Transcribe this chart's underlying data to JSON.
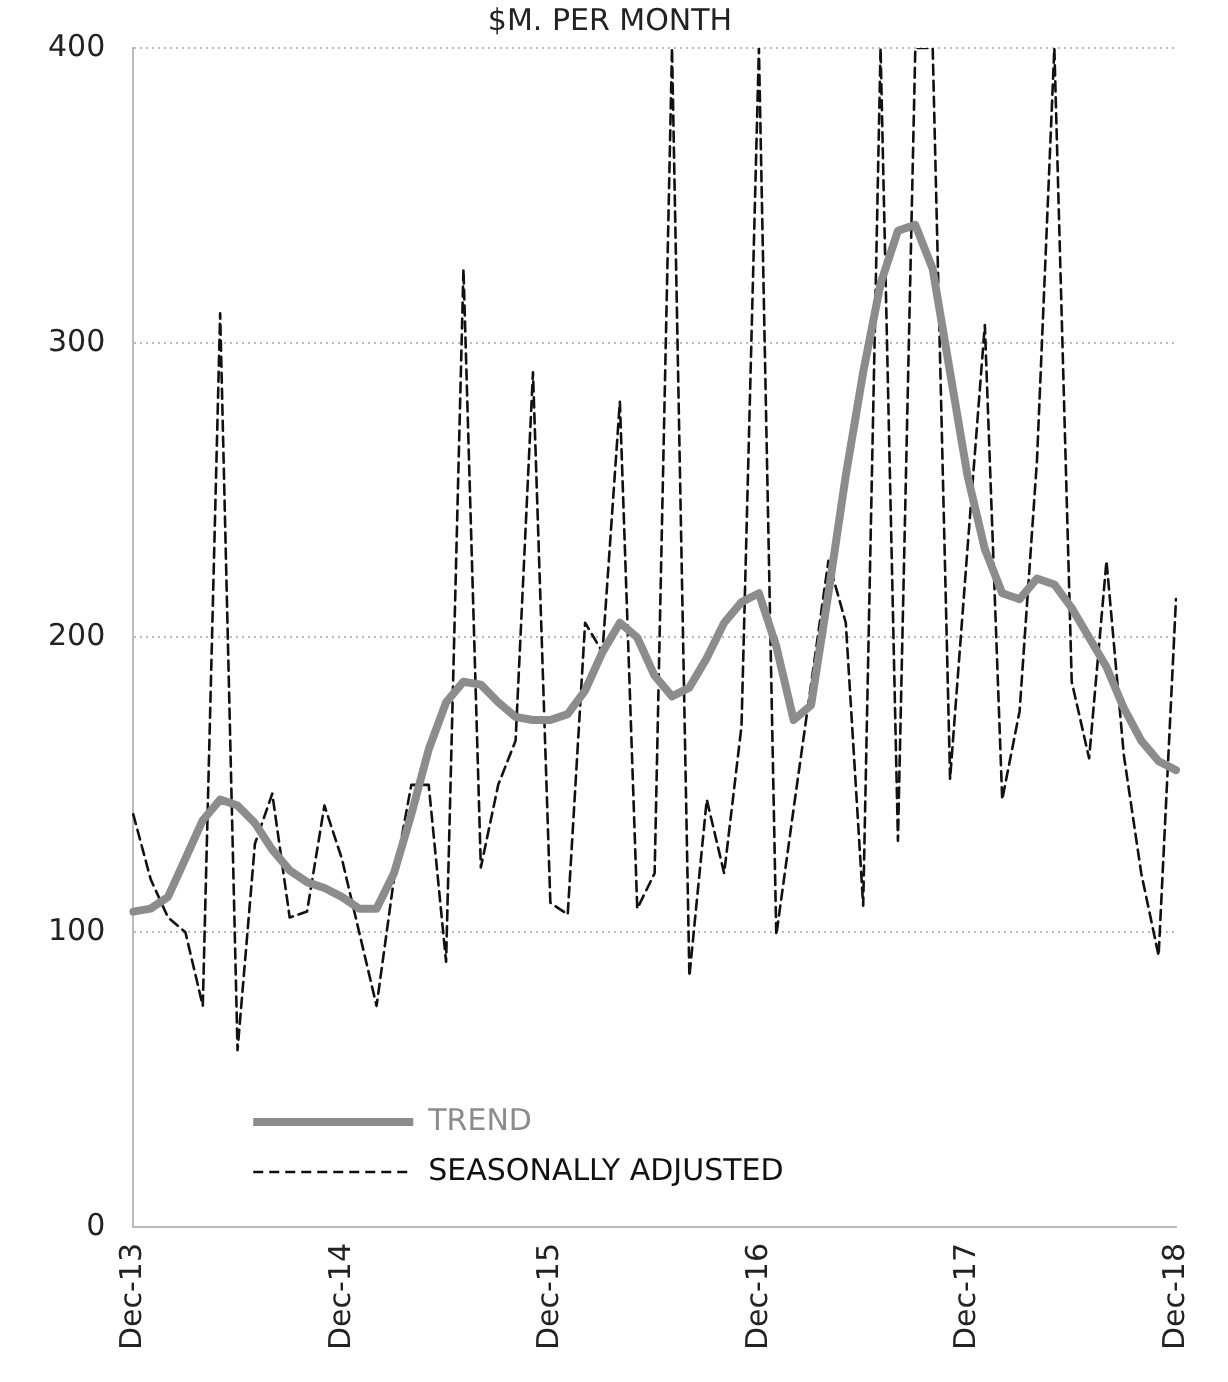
{
  "chart_data": {
    "type": "line",
    "title": "$M. PER MONTH",
    "categories": [
      "Dec-13",
      null,
      null,
      null,
      null,
      null,
      null,
      null,
      null,
      null,
      null,
      null,
      "Dec-14",
      null,
      null,
      null,
      null,
      null,
      null,
      null,
      null,
      null,
      null,
      null,
      "Dec-15",
      null,
      null,
      null,
      null,
      null,
      null,
      null,
      null,
      null,
      null,
      null,
      "Dec-16",
      null,
      null,
      null,
      null,
      null,
      null,
      null,
      null,
      null,
      null,
      null,
      "Dec-17",
      null,
      null,
      null,
      null,
      null,
      null,
      null,
      null,
      null,
      null,
      null,
      "Dec-18"
    ],
    "series": [
      {
        "name": "TREND",
        "color": "#8c8c8c",
        "line_style": "solid",
        "values": [
          107,
          108,
          112,
          125,
          138,
          145,
          143,
          137,
          128,
          121,
          117,
          115,
          112,
          108,
          108,
          120,
          140,
          162,
          178,
          185,
          184,
          178,
          173,
          172,
          172,
          174,
          182,
          195,
          205,
          200,
          187,
          180,
          183,
          193,
          205,
          212,
          215,
          197,
          172,
          177,
          215,
          255,
          290,
          320,
          338,
          340,
          325,
          290,
          255,
          230,
          215,
          213,
          220,
          218,
          210,
          200,
          190,
          176,
          165,
          158,
          155
        ]
      },
      {
        "name": "SEASONALLY ADJUSTED",
        "color": "#111111",
        "line_style": "dashed",
        "values": [
          140,
          118,
          105,
          100,
          75,
          310,
          60,
          130,
          147,
          105,
          107,
          143,
          125,
          100,
          75,
          118,
          150,
          150,
          90,
          325,
          122,
          150,
          165,
          290,
          110,
          106,
          205,
          195,
          280,
          108,
          120,
          400,
          85,
          145,
          120,
          170,
          400,
          99,
          142,
          184,
          226,
          205,
          109,
          400,
          131,
          400,
          400,
          152,
          230,
          306,
          145,
          175,
          260,
          400,
          185,
          159,
          226,
          160,
          120,
          92,
          213
        ]
      }
    ],
    "ylim": [
      0,
      400
    ],
    "yticks": [
      0,
      100,
      200,
      300,
      400
    ],
    "grid": "y",
    "legend": "bottom left",
    "marker": "none"
  }
}
